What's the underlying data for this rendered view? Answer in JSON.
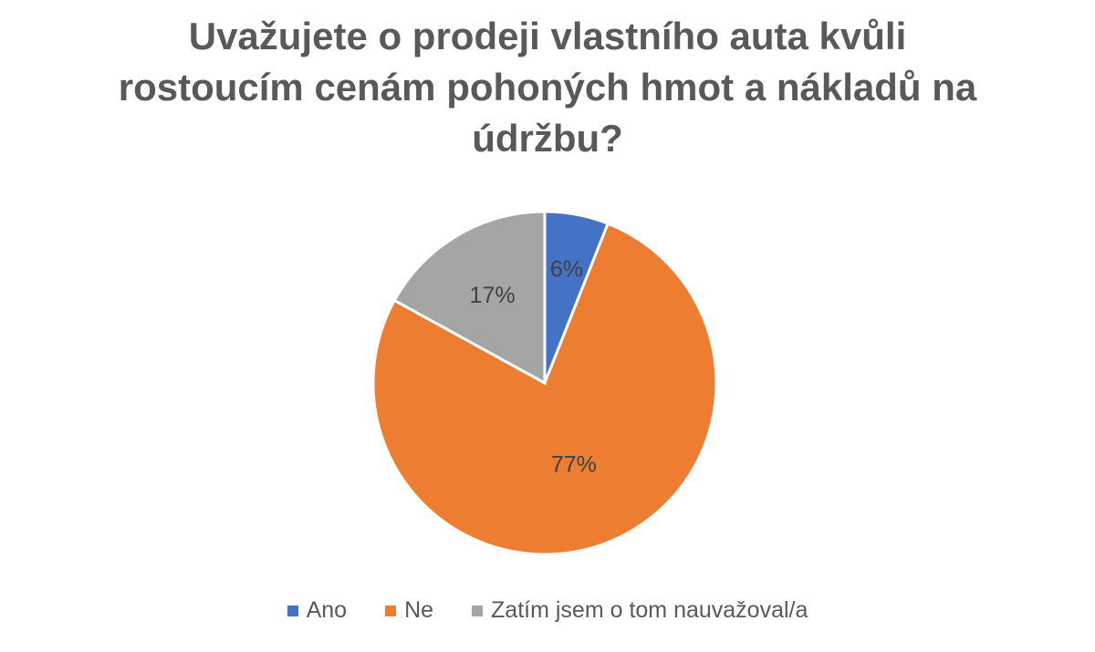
{
  "chart_data": {
    "type": "pie",
    "title": "Uvažujete o prodeji vlastního auta kvůli rostoucím cenám pohoných hmot a nákladů na údržbu?",
    "title_lines": [
      "Uvažujete o prodeji vlastního auta kvůli",
      "rostoucím cenám pohoných hmot a nákladů na",
      "údržbu?"
    ],
    "categories": [
      "Ano",
      "Ne",
      "Zatím jsem o tom nauvažoval/a"
    ],
    "values": [
      6,
      77,
      17
    ],
    "labels": [
      "6%",
      "77%",
      "17%"
    ],
    "colors": [
      "#4472C4",
      "#ED7D31",
      "#A5A5A5"
    ],
    "legend_position": "bottom"
  }
}
